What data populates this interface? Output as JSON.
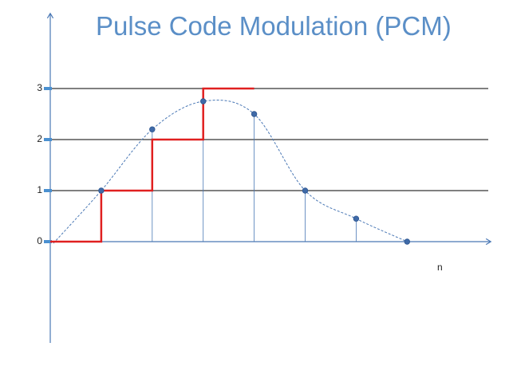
{
  "title": "Pulse Code Modulation (PCM)",
  "x_axis_label": "n",
  "chart_data": {
    "type": "line",
    "title": "Pulse Code Modulation (PCM)",
    "xlabel": "n",
    "ylabel": "",
    "yticks": [
      "0",
      "1",
      "2",
      "3"
    ],
    "ylim": [
      0,
      3
    ],
    "x": [
      0,
      1,
      2,
      3,
      4,
      5,
      6,
      7
    ],
    "series": [
      {
        "kind": "analog",
        "color": "#4a78b5",
        "x": [
          0,
          1,
          2,
          3,
          4,
          5,
          6,
          7
        ],
        "values": [
          0,
          1.0,
          2.2,
          2.75,
          2.5,
          1.0,
          0.45,
          0.0
        ]
      },
      {
        "kind": "quantized",
        "color": "#e02020",
        "x": [
          0,
          1,
          2,
          3,
          4
        ],
        "values": [
          0,
          1,
          2,
          3,
          3
        ]
      }
    ],
    "samples": [
      {
        "n": 1,
        "value": 1.0
      },
      {
        "n": 2,
        "value": 2.2
      },
      {
        "n": 3,
        "value": 2.75
      },
      {
        "n": 4,
        "value": 2.5
      },
      {
        "n": 5,
        "value": 1.0
      },
      {
        "n": 6,
        "value": 0.45
      },
      {
        "n": 7,
        "value": 0.0
      }
    ],
    "grid": true,
    "colors": {
      "axis": "#4a78b5",
      "grid": "#000000",
      "quantized": "#e02020",
      "analog": "#4a78b5",
      "tick_marker": "#4a90d0"
    }
  }
}
